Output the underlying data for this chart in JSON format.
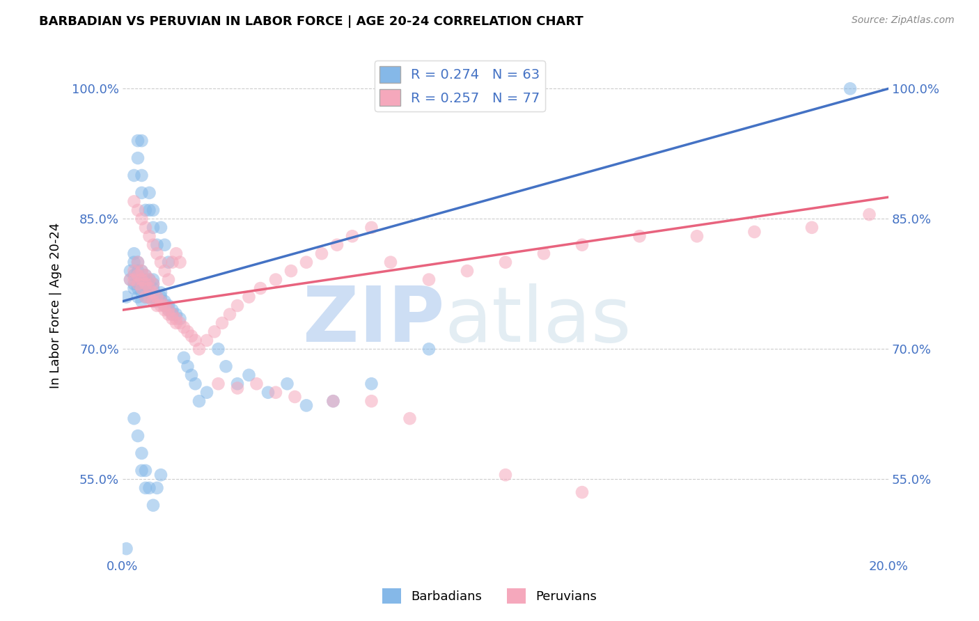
{
  "title": "BARBADIAN VS PERUVIAN IN LABOR FORCE | AGE 20-24 CORRELATION CHART",
  "source": "Source: ZipAtlas.com",
  "ylabel": "In Labor Force | Age 20-24",
  "xlim": [
    0.0,
    0.2
  ],
  "ylim": [
    0.46,
    1.04
  ],
  "yticks": [
    0.55,
    0.7,
    0.85,
    1.0
  ],
  "ytick_labels": [
    "55.0%",
    "70.0%",
    "85.0%",
    "100.0%"
  ],
  "xticks": [
    0.0,
    0.05,
    0.1,
    0.15,
    0.2
  ],
  "xtick_labels": [
    "0.0%",
    "",
    "",
    "",
    "20.0%"
  ],
  "watermark_zip": "ZIP",
  "watermark_atlas": "atlas",
  "barbadian_color": "#85b8e8",
  "peruvian_color": "#f5a8bc",
  "barbadian_line_color": "#4472c4",
  "peruvian_line_color": "#e8637e",
  "R_barbadian": 0.274,
  "N_barbadian": 63,
  "R_peruvian": 0.257,
  "N_peruvian": 77,
  "legend_label_barbadian": "Barbadians",
  "legend_label_peruvian": "Peruvians",
  "barb_line_x0": 0.0,
  "barb_line_y0": 0.755,
  "barb_line_x1": 0.2,
  "barb_line_y1": 1.0,
  "peru_line_x0": 0.0,
  "peru_line_y0": 0.745,
  "peru_line_x1": 0.2,
  "peru_line_y1": 0.875,
  "barbadian_x": [
    0.001,
    0.002,
    0.002,
    0.003,
    0.003,
    0.003,
    0.003,
    0.003,
    0.004,
    0.004,
    0.004,
    0.004,
    0.004,
    0.005,
    0.005,
    0.005,
    0.005,
    0.005,
    0.006,
    0.006,
    0.006,
    0.006,
    0.006,
    0.007,
    0.007,
    0.007,
    0.007,
    0.008,
    0.008,
    0.008,
    0.008,
    0.008,
    0.009,
    0.009,
    0.01,
    0.01,
    0.01,
    0.011,
    0.011,
    0.012,
    0.012,
    0.013,
    0.013,
    0.014,
    0.015,
    0.016,
    0.017,
    0.018,
    0.019,
    0.02,
    0.022,
    0.025,
    0.027,
    0.03,
    0.033,
    0.038,
    0.043,
    0.048,
    0.055,
    0.065,
    0.08,
    0.19,
    0.001
  ],
  "barbadian_y": [
    0.76,
    0.78,
    0.79,
    0.77,
    0.775,
    0.785,
    0.8,
    0.81,
    0.76,
    0.77,
    0.775,
    0.79,
    0.8,
    0.755,
    0.765,
    0.775,
    0.78,
    0.79,
    0.76,
    0.77,
    0.775,
    0.78,
    0.785,
    0.76,
    0.765,
    0.775,
    0.78,
    0.755,
    0.76,
    0.77,
    0.775,
    0.78,
    0.755,
    0.76,
    0.755,
    0.76,
    0.765,
    0.75,
    0.755,
    0.745,
    0.75,
    0.74,
    0.745,
    0.74,
    0.735,
    0.69,
    0.68,
    0.67,
    0.66,
    0.64,
    0.65,
    0.7,
    0.68,
    0.66,
    0.67,
    0.65,
    0.66,
    0.635,
    0.64,
    0.66,
    0.7,
    1.0,
    0.47
  ],
  "barbadian_x2": [
    0.003,
    0.004,
    0.004,
    0.005,
    0.005,
    0.005,
    0.006,
    0.007,
    0.007,
    0.008,
    0.008,
    0.009,
    0.01,
    0.011,
    0.012
  ],
  "barbadian_y2": [
    0.9,
    0.92,
    0.94,
    0.88,
    0.9,
    0.94,
    0.86,
    0.88,
    0.86,
    0.84,
    0.86,
    0.82,
    0.84,
    0.82,
    0.8
  ],
  "barbadian_x3": [
    0.003,
    0.004,
    0.005,
    0.005,
    0.006,
    0.006,
    0.007,
    0.008,
    0.009,
    0.01
  ],
  "barbadian_y3": [
    0.62,
    0.6,
    0.58,
    0.56,
    0.56,
    0.54,
    0.54,
    0.52,
    0.54,
    0.555
  ],
  "peruvian_x": [
    0.002,
    0.003,
    0.003,
    0.004,
    0.004,
    0.004,
    0.005,
    0.005,
    0.005,
    0.006,
    0.006,
    0.006,
    0.007,
    0.007,
    0.007,
    0.008,
    0.008,
    0.008,
    0.009,
    0.009,
    0.01,
    0.01,
    0.011,
    0.011,
    0.012,
    0.012,
    0.013,
    0.013,
    0.014,
    0.014,
    0.015,
    0.016,
    0.017,
    0.018,
    0.019,
    0.02,
    0.022,
    0.024,
    0.026,
    0.028,
    0.03,
    0.033,
    0.036,
    0.04,
    0.044,
    0.048,
    0.052,
    0.056,
    0.06,
    0.065,
    0.07,
    0.08,
    0.09,
    0.1,
    0.11,
    0.12,
    0.135,
    0.15,
    0.165,
    0.18,
    0.195
  ],
  "peruvian_y": [
    0.78,
    0.78,
    0.79,
    0.775,
    0.785,
    0.8,
    0.77,
    0.78,
    0.79,
    0.76,
    0.775,
    0.785,
    0.76,
    0.77,
    0.78,
    0.755,
    0.765,
    0.775,
    0.75,
    0.76,
    0.75,
    0.755,
    0.745,
    0.75,
    0.74,
    0.745,
    0.735,
    0.74,
    0.73,
    0.735,
    0.73,
    0.725,
    0.72,
    0.715,
    0.71,
    0.7,
    0.71,
    0.72,
    0.73,
    0.74,
    0.75,
    0.76,
    0.77,
    0.78,
    0.79,
    0.8,
    0.81,
    0.82,
    0.83,
    0.84,
    0.8,
    0.78,
    0.79,
    0.8,
    0.81,
    0.82,
    0.83,
    0.83,
    0.835,
    0.84,
    0.855
  ],
  "peruvian_x2": [
    0.003,
    0.004,
    0.005,
    0.006,
    0.007,
    0.008,
    0.009,
    0.01,
    0.011,
    0.012,
    0.013,
    0.014,
    0.015
  ],
  "peruvian_y2": [
    0.87,
    0.86,
    0.85,
    0.84,
    0.83,
    0.82,
    0.81,
    0.8,
    0.79,
    0.78,
    0.8,
    0.81,
    0.8
  ],
  "peruvian_x3": [
    0.025,
    0.03,
    0.035,
    0.04,
    0.045,
    0.055,
    0.065,
    0.075,
    0.1,
    0.12
  ],
  "peruvian_y3": [
    0.66,
    0.655,
    0.66,
    0.65,
    0.645,
    0.64,
    0.64,
    0.62,
    0.555,
    0.535
  ]
}
